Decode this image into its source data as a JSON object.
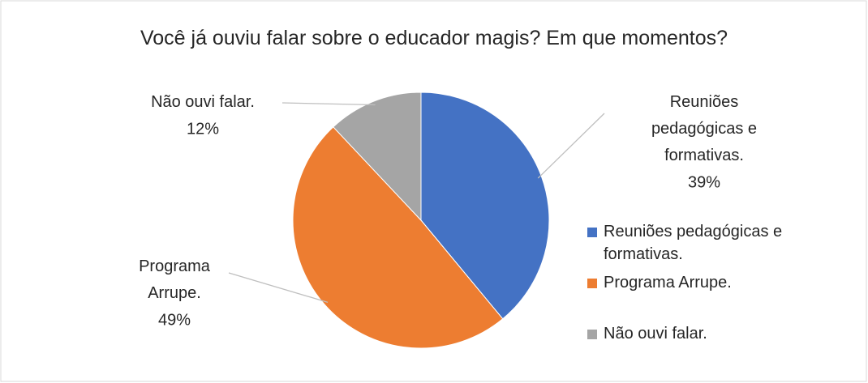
{
  "chart_data": {
    "type": "pie",
    "title": "Você já ouviu falar sobre o educador magis? Em que momentos?",
    "categories": [
      "Reuniões pedagógicas e formativas.",
      "Programa Arrupe.",
      "Não ouvi falar."
    ],
    "values": [
      39,
      49,
      12
    ],
    "value_labels": [
      "39%",
      "49%",
      "12%"
    ],
    "colors": [
      "#4472c4",
      "#ed7d31",
      "#a5a5a5"
    ],
    "legend": "right"
  }
}
